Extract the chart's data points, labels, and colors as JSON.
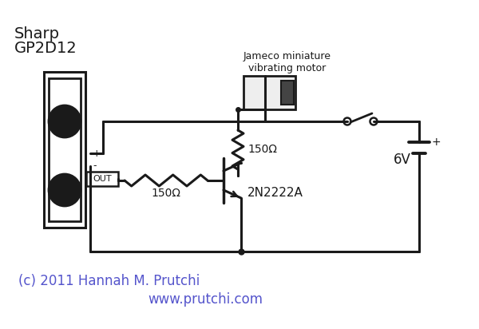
{
  "background_color": "#ffffff",
  "line_color": "#1a1a1a",
  "blue_text_color": "#5555cc",
  "sensor_label_line1": "Sharp",
  "sensor_label_line2": "GP2D12",
  "motor_label": "Jameco miniature\nvibrating motor",
  "resistor1_label": "150Ω",
  "resistor2_label": "150Ω",
  "transistor_label": "2N2222A",
  "battery_label": "6V",
  "out_label": "OUT",
  "plus_label": "+",
  "minus_label": "-",
  "copyright": "(c) 2011 Hannah M. Prutchi",
  "website": "www.prutchi.com"
}
